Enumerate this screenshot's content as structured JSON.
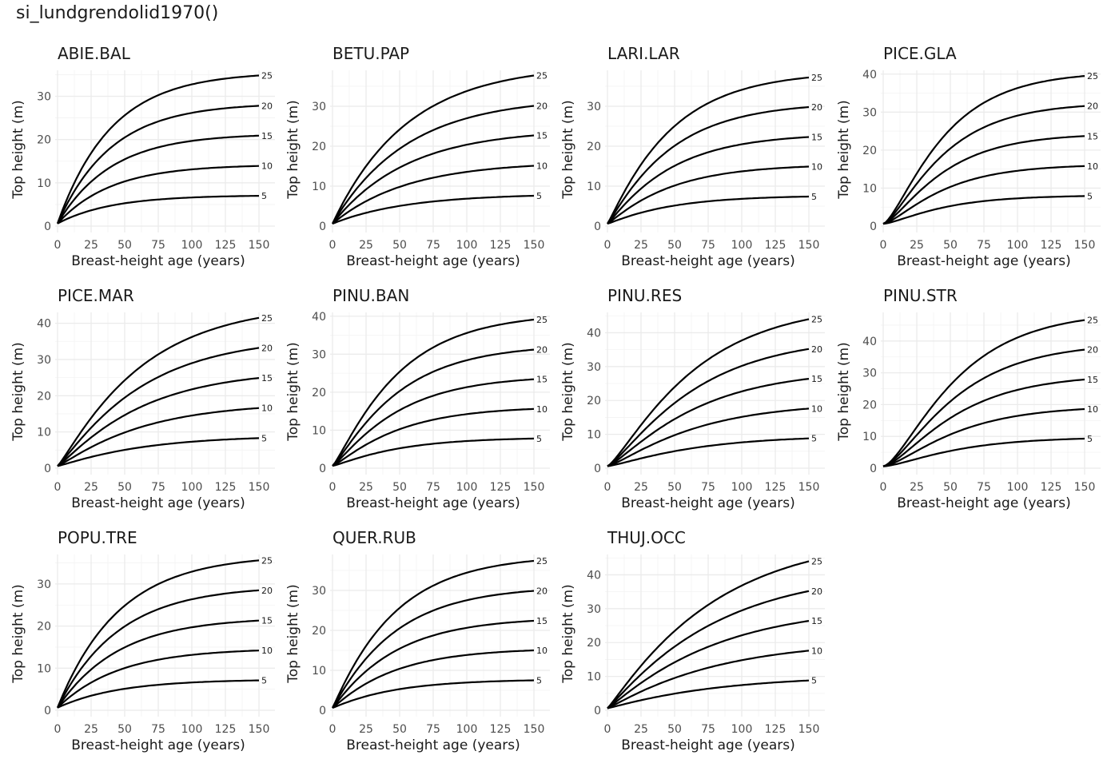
{
  "chart_data": {
    "type": "line",
    "title": "si_lundgrendolid1970()",
    "xlabel": "Breast-height age (years)",
    "ylabel": "Top height (m)",
    "xlim": [
      0,
      150
    ],
    "x_ticks": [
      0,
      25,
      50,
      75,
      100,
      125,
      150
    ],
    "site_index_classes": [
      5,
      10,
      15,
      20,
      25
    ],
    "grid": true,
    "panels": [
      {
        "species": "ABIE.BAL",
        "y_ticks": [
          0,
          10,
          20,
          30
        ],
        "ylim": [
          0,
          36
        ],
        "endpoints": [
          7.0,
          13.9,
          20.9,
          27.8,
          34.8
        ],
        "shape": 1.0,
        "rate": 0.025
      },
      {
        "species": "BETU.PAP",
        "y_ticks": [
          0,
          10,
          20,
          30
        ],
        "ylim": [
          0,
          39
        ],
        "endpoints": [
          7.6,
          15.1,
          22.7,
          30.1,
          37.7
        ],
        "shape": 1.0,
        "rate": 0.018
      },
      {
        "species": "LARI.LAR",
        "y_ticks": [
          0,
          10,
          20,
          30
        ],
        "ylim": [
          0,
          39
        ],
        "endpoints": [
          7.4,
          14.9,
          22.3,
          29.8,
          37.2
        ],
        "shape": 1.1,
        "rate": 0.022
      },
      {
        "species": "PICE.GLA",
        "y_ticks": [
          0,
          10,
          20,
          30,
          40
        ],
        "ylim": [
          0,
          41
        ],
        "endpoints": [
          7.9,
          15.8,
          23.7,
          31.6,
          39.5
        ],
        "shape": 1.5,
        "rate": 0.026
      },
      {
        "species": "PICE.MAR",
        "y_ticks": [
          0,
          10,
          20,
          30,
          40
        ],
        "ylim": [
          0,
          43
        ],
        "endpoints": [
          8.3,
          16.6,
          24.9,
          33.2,
          41.5
        ],
        "shape": 1.15,
        "rate": 0.017
      },
      {
        "species": "PINU.BAN",
        "y_ticks": [
          0,
          10,
          20,
          30,
          40
        ],
        "ylim": [
          0,
          41
        ],
        "endpoints": [
          7.8,
          15.6,
          23.4,
          31.2,
          39.1
        ],
        "shape": 1.2,
        "rate": 0.022
      },
      {
        "species": "PINU.RES",
        "y_ticks": [
          0,
          10,
          20,
          30,
          40
        ],
        "ylim": [
          0,
          46
        ],
        "endpoints": [
          8.8,
          17.6,
          26.4,
          35.2,
          44.0
        ],
        "shape": 1.3,
        "rate": 0.017
      },
      {
        "species": "PINU.STR",
        "y_ticks": [
          0,
          10,
          20,
          30,
          40
        ],
        "ylim": [
          0,
          49
        ],
        "endpoints": [
          9.3,
          18.6,
          27.9,
          37.3,
          46.6
        ],
        "shape": 1.6,
        "rate": 0.022
      },
      {
        "species": "POPU.TRE",
        "y_ticks": [
          0,
          10,
          20,
          30
        ],
        "ylim": [
          0,
          37
        ],
        "endpoints": [
          7.1,
          14.2,
          21.3,
          28.5,
          35.6
        ],
        "shape": 1.0,
        "rate": 0.022
      },
      {
        "species": "QUER.RUB",
        "y_ticks": [
          0,
          10,
          20,
          30
        ],
        "ylim": [
          0,
          39
        ],
        "endpoints": [
          7.5,
          15.0,
          22.4,
          29.9,
          37.4
        ],
        "shape": 1.05,
        "rate": 0.022
      },
      {
        "species": "THUJ.OCC",
        "y_ticks": [
          0,
          10,
          20,
          30,
          40
        ],
        "ylim": [
          0,
          46
        ],
        "endpoints": [
          8.8,
          17.6,
          26.4,
          35.2,
          44.0
        ],
        "shape": 1.1,
        "rate": 0.013
      }
    ]
  }
}
